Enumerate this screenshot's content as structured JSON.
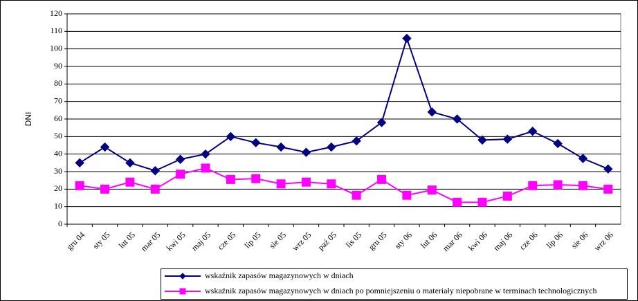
{
  "chart_data": {
    "type": "line",
    "y_label": "DNI",
    "categories": [
      "gru 04",
      "sty 05",
      "lut 05",
      "mar 05",
      "kwi 05",
      "maj 05",
      "cze 05",
      "lip 05",
      "sie 05",
      "wrz 05",
      "paź 05",
      "lis 05",
      "gru 05",
      "sty 06",
      "lut 06",
      "mar 06",
      "kwi 06",
      "maj 06",
      "cze 06",
      "lip 06",
      "sie 06",
      "wrz 06"
    ],
    "series": [
      {
        "name": "wskaźnik zapasów magazynowych w dniach",
        "color": "#000080",
        "marker": "diamond",
        "values": [
          35,
          44,
          35,
          30.5,
          37,
          40,
          50,
          46.5,
          44,
          41,
          44,
          47.5,
          58,
          106,
          64,
          60,
          48,
          48.5,
          53,
          46,
          37.5,
          31.5
        ]
      },
      {
        "name": "wskaźnik zapasów magazynowych w dniach po pomniejszeniu o materiały niepobrane w terminach technologicznych",
        "color": "#ff00ff",
        "marker": "square",
        "values": [
          22,
          20,
          24,
          20,
          28.5,
          32,
          25.5,
          26,
          23,
          24,
          23,
          16.5,
          25.5,
          16.5,
          19.5,
          12.5,
          12.5,
          16,
          22,
          22.5,
          22,
          20
        ]
      }
    ],
    "ylim": [
      0,
      120
    ],
    "yticks": [
      0,
      10,
      20,
      30,
      40,
      50,
      60,
      70,
      80,
      90,
      100,
      110,
      120
    ],
    "grid": true
  }
}
